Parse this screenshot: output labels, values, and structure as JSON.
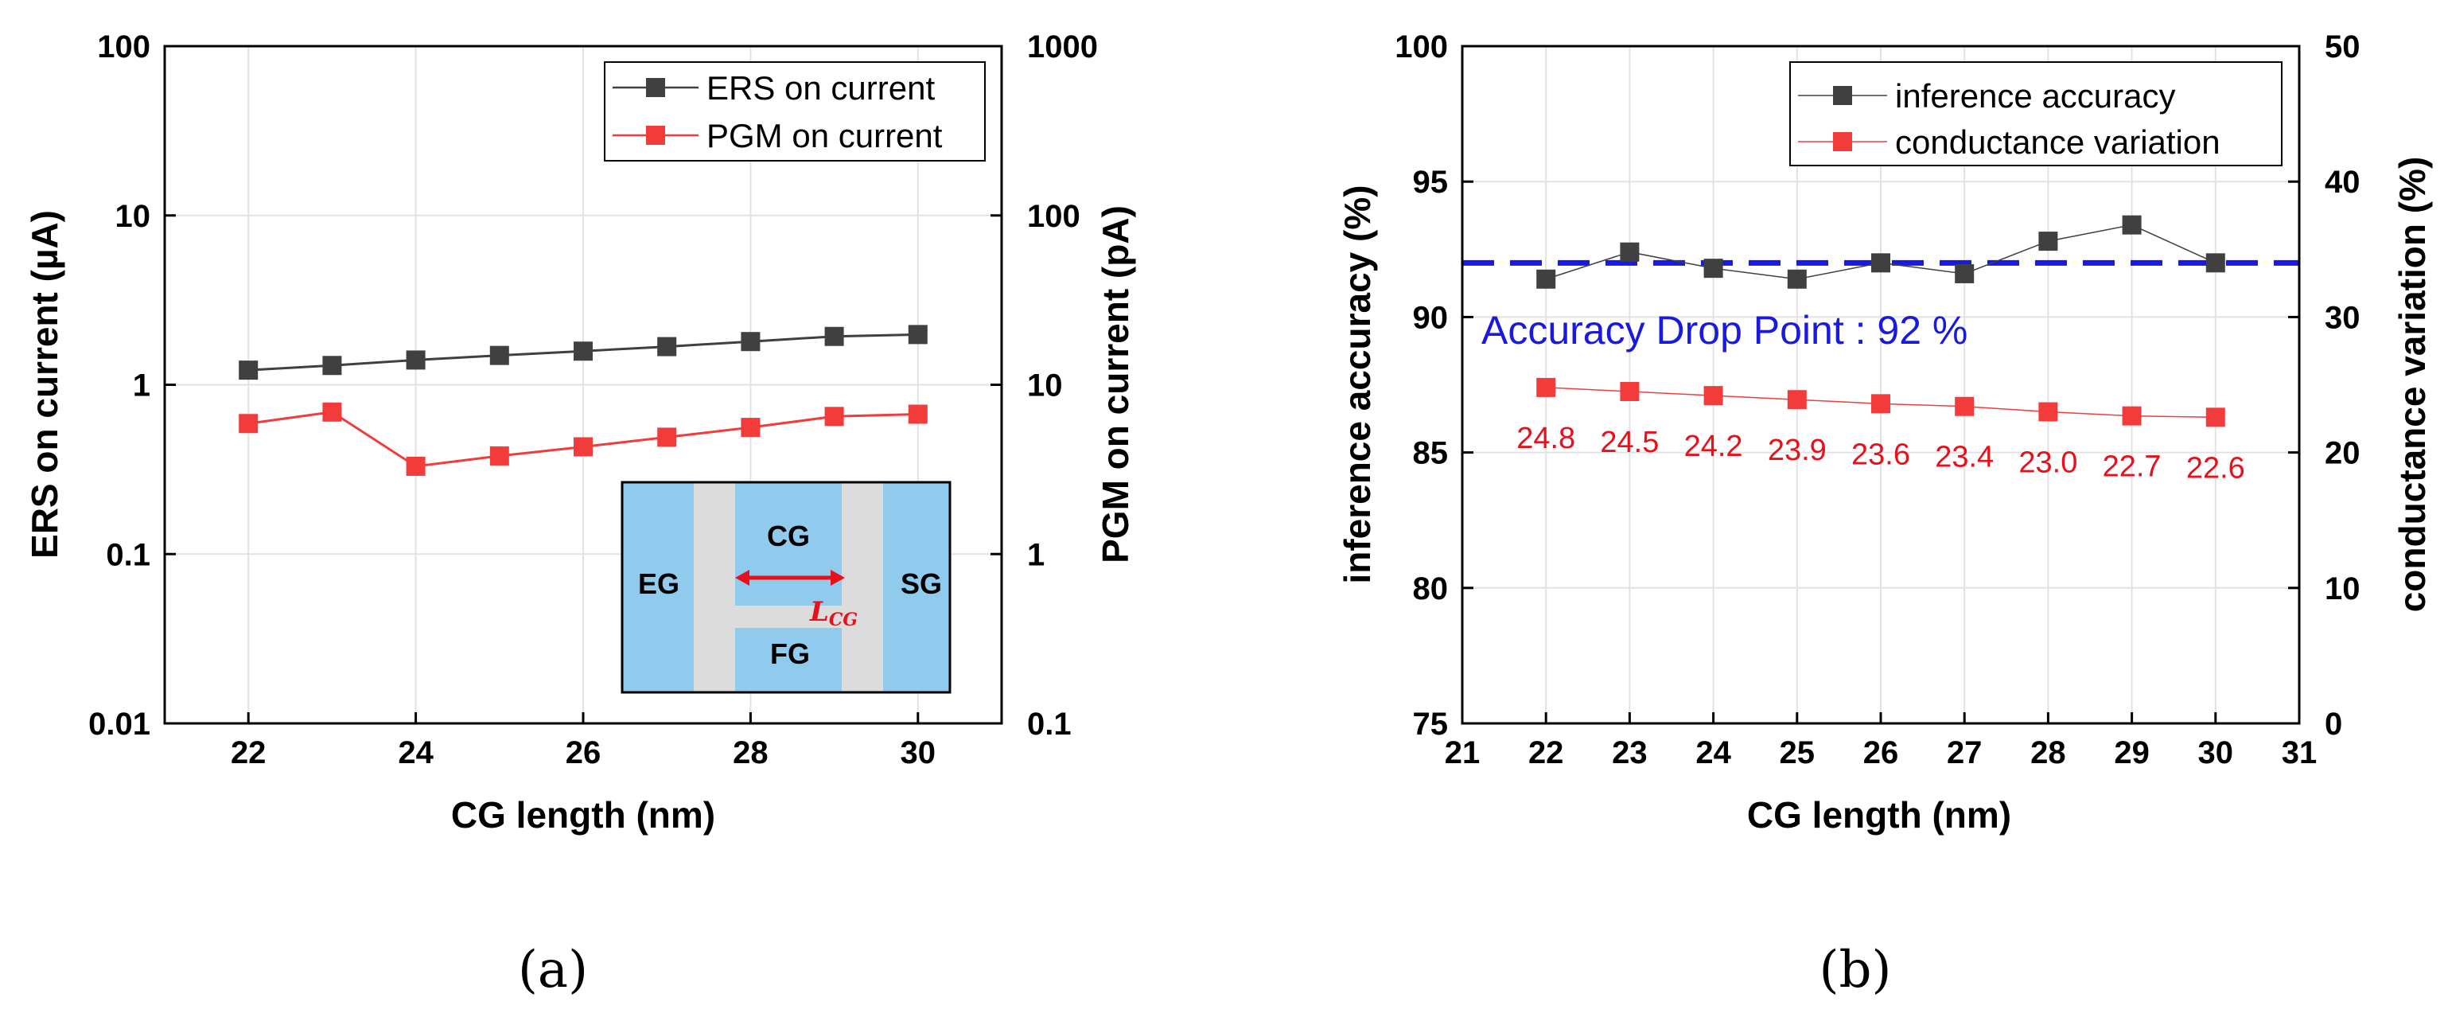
{
  "colors": {
    "ers": "#404040",
    "pgm": "#f23b3b",
    "accuracy": "#404040",
    "variation": "#f23b3b",
    "threshold": "#1a1adf",
    "grid": "#e2e2e2",
    "inset_fill": "#90cbee",
    "inset_gap": "#dcdcdc"
  },
  "chart_data": [
    {
      "id": "a",
      "type": "line",
      "caption": "(a)",
      "xlabel": "CG length (nm)",
      "ylabel": "ERS on current (µA)",
      "y2label": "PGM on current (pA)",
      "xlim": [
        21,
        31
      ],
      "xticks": [
        "22",
        "24",
        "26",
        "28",
        "30"
      ],
      "xtick_values": [
        22,
        24,
        26,
        28,
        30
      ],
      "ylim_log": [
        0.01,
        100
      ],
      "yticks": [
        "0.01",
        "0.1",
        "1",
        "10",
        "100"
      ],
      "yticks_values": [
        0.01,
        0.1,
        1,
        10,
        100
      ],
      "y2lim_log": [
        0.1,
        1000
      ],
      "y2ticks": [
        "0.1",
        "1",
        "10",
        "100",
        "1000"
      ],
      "y2ticks_values": [
        0.1,
        1,
        10,
        100,
        1000
      ],
      "legend_position": "top-right",
      "series": [
        {
          "name": "ERS on current",
          "axis": "left",
          "x": [
            22,
            23,
            24,
            25,
            26,
            27,
            28,
            29,
            30
          ],
          "values": [
            1.22,
            1.3,
            1.4,
            1.49,
            1.58,
            1.68,
            1.8,
            1.93,
            1.98
          ]
        },
        {
          "name": "PGM on current",
          "axis": "right",
          "x": [
            22,
            23,
            24,
            25,
            26,
            27,
            28,
            29,
            30
          ],
          "values": [
            5.9,
            6.9,
            3.3,
            3.8,
            4.3,
            4.9,
            5.6,
            6.5,
            6.7
          ]
        }
      ],
      "inset": {
        "labels": {
          "eg": "EG",
          "cg": "CG",
          "fg": "FG",
          "sg": "SG"
        },
        "dimension_label": "L",
        "dimension_subscript": "CG"
      }
    },
    {
      "id": "b",
      "type": "line",
      "caption": "(b)",
      "xlabel": "CG length (nm)",
      "ylabel": "inference accuracy (%)",
      "y2label": "conductance variation (%)",
      "xlim": [
        21,
        31
      ],
      "xticks": [
        "21",
        "22",
        "23",
        "24",
        "25",
        "26",
        "27",
        "28",
        "29",
        "30",
        "31"
      ],
      "xtick_values": [
        21,
        22,
        23,
        24,
        25,
        26,
        27,
        28,
        29,
        30,
        31
      ],
      "ylim": [
        75,
        100
      ],
      "yticks": [
        "75",
        "80",
        "85",
        "90",
        "95",
        "100"
      ],
      "yticks_values": [
        75,
        80,
        85,
        90,
        95,
        100
      ],
      "y2lim": [
        0,
        50
      ],
      "y2ticks": [
        "0",
        "10",
        "20",
        "30",
        "40",
        "50"
      ],
      "y2ticks_values": [
        0,
        10,
        20,
        30,
        40,
        50
      ],
      "legend_position": "top-right",
      "series": [
        {
          "name": "inference accuracy",
          "axis": "left",
          "x": [
            22,
            23,
            24,
            25,
            26,
            27,
            28,
            29,
            30
          ],
          "values": [
            91.4,
            92.4,
            91.8,
            91.4,
            92.0,
            91.6,
            92.8,
            93.4,
            92.0
          ]
        },
        {
          "name": "conductance variation",
          "axis": "right",
          "x": [
            22,
            23,
            24,
            25,
            26,
            27,
            28,
            29,
            30
          ],
          "values": [
            24.8,
            24.5,
            24.2,
            23.9,
            23.6,
            23.4,
            23.0,
            22.7,
            22.6
          ]
        }
      ],
      "data_labels": [
        "24.8",
        "24.5",
        "24.2",
        "23.9",
        "23.6",
        "23.4",
        "23.0",
        "22.7",
        "22.6"
      ],
      "threshold": {
        "value": 92,
        "label": "Accuracy Drop Point : 92 %"
      }
    }
  ]
}
